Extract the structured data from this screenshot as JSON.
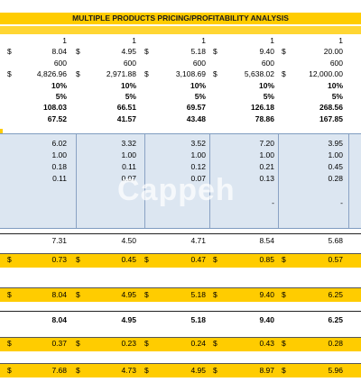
{
  "title": "MULTIPLE PRODUCTS PRICING/PROFITABILITY ANALYSIS",
  "watermark": "Cappeh",
  "currency_symbol": "$",
  "top_rows": [
    {
      "dollars": [
        false,
        false,
        false,
        false,
        false
      ],
      "bold": false,
      "values": [
        "1",
        "1",
        "1",
        "1",
        "1"
      ]
    },
    {
      "dollars": [
        true,
        true,
        true,
        true,
        true
      ],
      "bold": false,
      "values": [
        "8.04",
        "4.95",
        "5.18",
        "9.40",
        "20.00"
      ]
    },
    {
      "dollars": [
        false,
        false,
        false,
        false,
        false
      ],
      "bold": false,
      "values": [
        "600",
        "600",
        "600",
        "600",
        "600"
      ]
    },
    {
      "dollars": [
        true,
        true,
        true,
        true,
        true
      ],
      "bold": false,
      "values": [
        "4,826.96",
        "2,971.88",
        "3,108.69",
        "5,638.02",
        "12,000.00"
      ]
    },
    {
      "dollars": [
        false,
        false,
        false,
        false,
        false
      ],
      "bold": true,
      "values": [
        "10%",
        "10%",
        "10%",
        "10%",
        "10%"
      ]
    },
    {
      "dollars": [
        false,
        false,
        false,
        false,
        false
      ],
      "bold": true,
      "values": [
        "5%",
        "5%",
        "5%",
        "5%",
        "5%"
      ]
    },
    {
      "dollars": [
        false,
        false,
        false,
        false,
        false
      ],
      "bold": true,
      "values": [
        "108.03",
        "66.51",
        "69.57",
        "126.18",
        "268.56"
      ]
    },
    {
      "dollars": [
        false,
        false,
        false,
        false,
        false
      ],
      "bold": true,
      "values": [
        "67.52",
        "41.57",
        "43.48",
        "78.86",
        "167.85"
      ]
    }
  ],
  "blue_rows": [
    {
      "values": [
        "6.02",
        "3.32",
        "3.52",
        "7.20",
        "3.95"
      ]
    },
    {
      "values": [
        "1.00",
        "1.00",
        "1.00",
        "1.00",
        "1.00"
      ]
    },
    {
      "values": [
        "0.18",
        "0.11",
        "0.12",
        "0.21",
        "0.45"
      ]
    },
    {
      "values": [
        "0.11",
        "0.07",
        "0.07",
        "0.13",
        "0.28"
      ]
    },
    {
      "values": [
        "",
        "",
        "",
        "-",
        "-"
      ]
    }
  ],
  "subtotal_row": {
    "values": [
      "7.31",
      "4.50",
      "4.71",
      "8.54",
      "5.68"
    ]
  },
  "yellow_row_1": {
    "values": [
      "0.73",
      "0.45",
      "0.47",
      "0.85",
      "0.57"
    ]
  },
  "yellow_row_2": {
    "values": [
      "8.04",
      "4.95",
      "5.18",
      "9.40",
      "6.25"
    ]
  },
  "bold_row": {
    "values": [
      "8.04",
      "4.95",
      "5.18",
      "9.40",
      "6.25"
    ]
  },
  "yellow_row_3": {
    "values": [
      "0.37",
      "0.23",
      "0.24",
      "0.43",
      "0.28"
    ]
  },
  "yellow_row_4": {
    "values": [
      "7.68",
      "4.73",
      "4.95",
      "8.97",
      "5.96"
    ]
  }
}
